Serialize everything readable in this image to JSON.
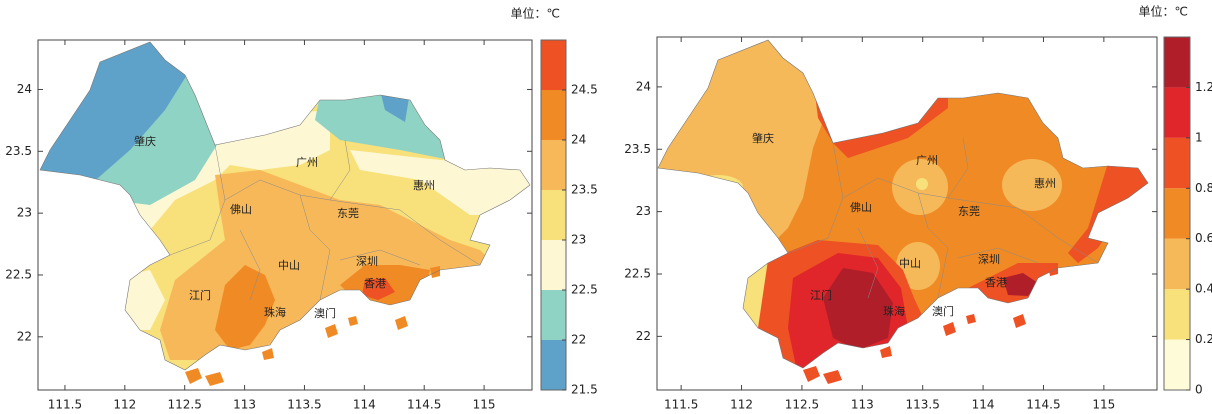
{
  "maps": [
    {
      "unit_label": "单位：℃",
      "xlim": [
        111.275,
        115.4
      ],
      "xticks": [
        111.5,
        112,
        112.5,
        113,
        113.5,
        114,
        114.5,
        115
      ],
      "ylim": [
        21.57,
        24.4
      ],
      "yticks": [
        22,
        22.5,
        23,
        23.5,
        24
      ],
      "clim": [
        21.5,
        25
      ],
      "cticks": [
        21.5,
        22,
        22.5,
        23,
        23.5,
        24,
        24.5
      ],
      "colors": [
        "#5fa2c9",
        "#8fd3c4",
        "#fdf8d3",
        "#f8e07a",
        "#f7b85a",
        "#f08a24",
        "#ee5123"
      ],
      "cities": [
        "肇庆",
        "广州",
        "惠州",
        "佛山",
        "东莞",
        "中山",
        "深圳",
        "江门",
        "香港",
        "珠海",
        "澳门"
      ]
    },
    {
      "unit_label": "单位：℃",
      "xlim": [
        111.3,
        115.44
      ],
      "xticks": [
        111.5,
        112,
        112.5,
        113,
        113.5,
        114,
        114.5,
        115
      ],
      "ylim": [
        21.57,
        24.4
      ],
      "yticks": [
        22,
        22.5,
        23,
        23.5,
        24
      ],
      "clim": [
        0,
        1.4
      ],
      "cticks": [
        0,
        0.2,
        0.4,
        0.6,
        0.8,
        1,
        1.2
      ],
      "colors": [
        "#fefbd9",
        "#f8e07a",
        "#f6b95a",
        "#f08a24",
        "#ee5123",
        "#e0262a",
        "#b01e2a"
      ],
      "cities": [
        "肇庆",
        "广州",
        "惠州",
        "佛山",
        "东莞",
        "中山",
        "深圳",
        "江门",
        "香港",
        "珠海",
        "澳门"
      ]
    }
  ]
}
